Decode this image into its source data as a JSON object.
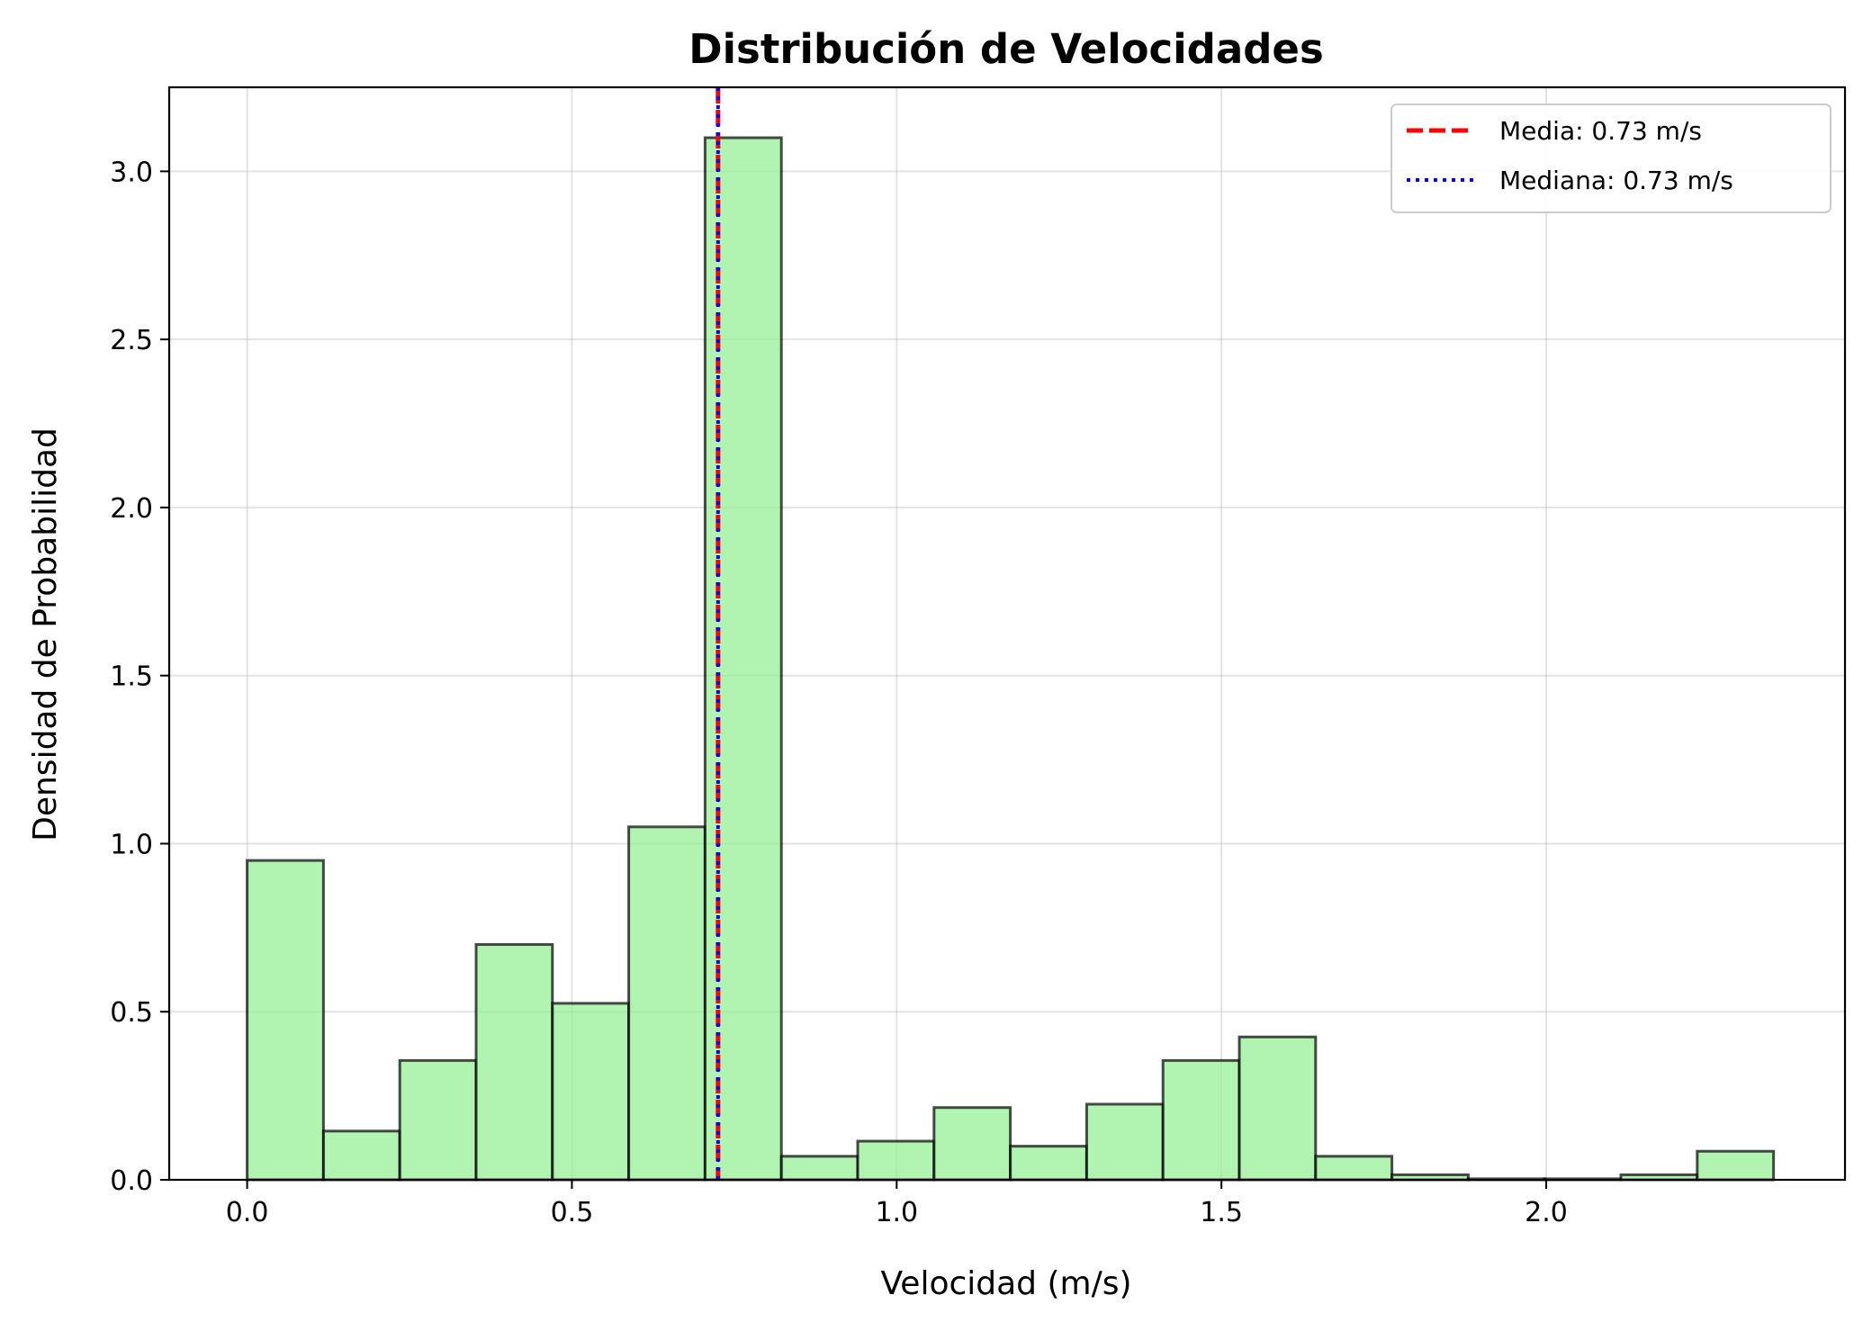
{
  "chart_data": {
    "type": "bar",
    "title": "Distribución de Velocidades",
    "xlabel": "Velocidad (m/s)",
    "ylabel": "Densidad de Probabilidad",
    "xlim": [
      -0.12,
      2.46
    ],
    "ylim": [
      0,
      3.25
    ],
    "xticks": [
      0.0,
      0.5,
      1.0,
      1.5,
      2.0
    ],
    "xtick_labels": [
      "0.0",
      "0.5",
      "1.0",
      "1.5",
      "2.0"
    ],
    "yticks": [
      0.0,
      0.5,
      1.0,
      1.5,
      2.0,
      2.5,
      3.0
    ],
    "ytick_labels": [
      "0.0",
      "0.5",
      "1.0",
      "1.5",
      "2.0",
      "2.5",
      "3.0"
    ],
    "grid": true,
    "bin_edges": [
      0.0,
      0.1175,
      0.235,
      0.3525,
      0.47,
      0.5875,
      0.705,
      0.8225,
      0.94,
      1.0575,
      1.175,
      1.2925,
      1.41,
      1.5275,
      1.645,
      1.7625,
      1.88,
      1.9975,
      2.115,
      2.2325,
      2.35
    ],
    "values": [
      0.95,
      0.145,
      0.355,
      0.7,
      0.525,
      1.05,
      3.1,
      0.07,
      0.115,
      0.215,
      0.1,
      0.225,
      0.355,
      0.425,
      0.07,
      0.015,
      0.003,
      0.003,
      0.015,
      0.085
    ],
    "bar_color": "#90ee90",
    "bar_edge_color": "#000000",
    "reference_lines": [
      {
        "name": "Media: 0.73 m/s",
        "x": 0.725,
        "color": "#ff0000",
        "style": "dashed"
      },
      {
        "name": "Mediana: 0.73 m/s",
        "x": 0.725,
        "color": "#0000ff",
        "style": "dotted"
      }
    ],
    "legend": {
      "placement": "top-right",
      "entries": [
        "Media: 0.73 m/s",
        "Mediana: 0.73 m/s"
      ]
    }
  }
}
